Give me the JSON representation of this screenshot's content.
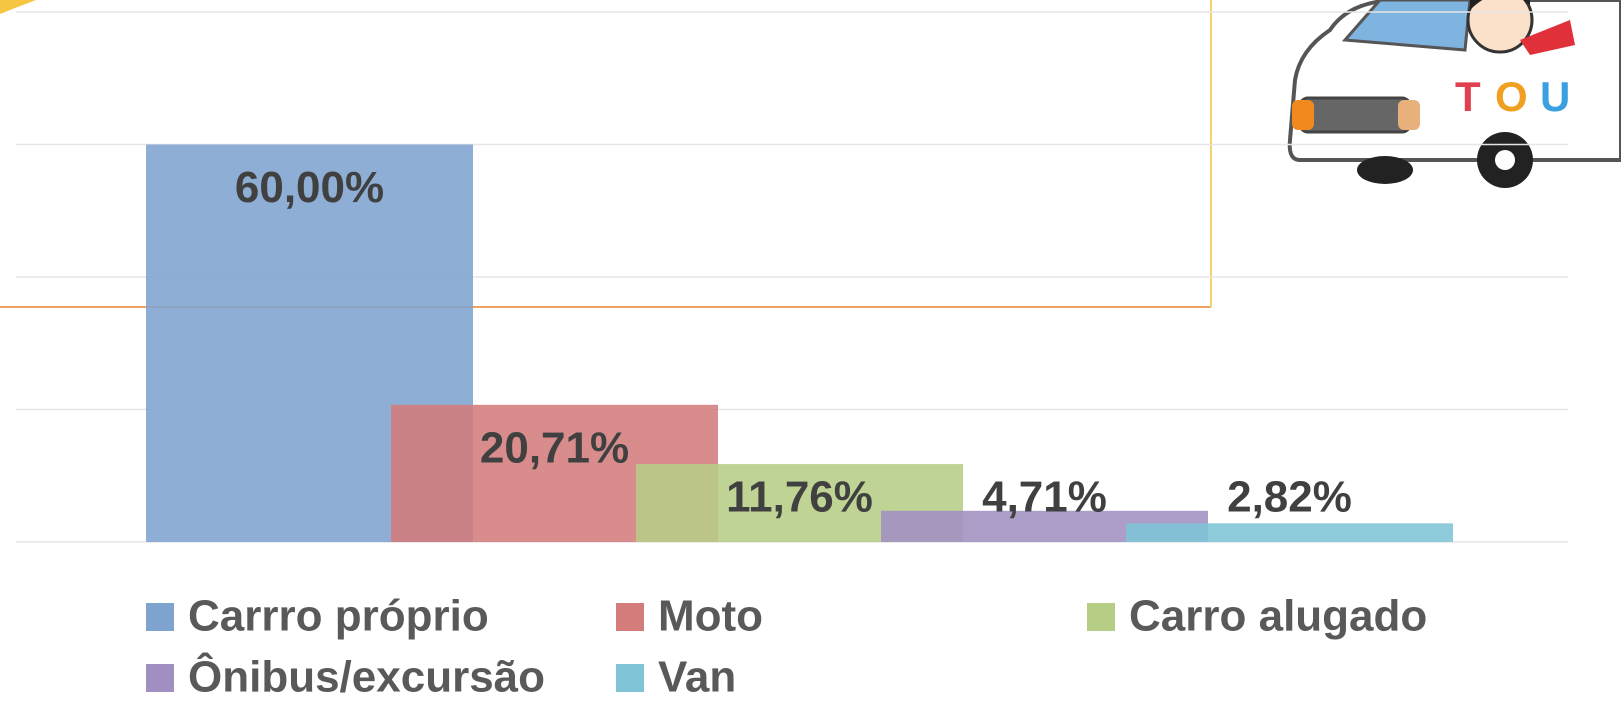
{
  "chart_data": {
    "type": "bar",
    "categories": [
      "Carrro próprio",
      "Moto",
      "Carro alugado",
      "Ônibus/excursão",
      "Van"
    ],
    "values": [
      60,
      20.71,
      11.76,
      4.71,
      2.82
    ],
    "value_labels": [
      "60,00%",
      "20,71%",
      "11,76%",
      "4,71%",
      "2,82%"
    ],
    "colors": [
      "#7ea3cf",
      "#d47c7c",
      "#b6cd86",
      "#a28fc1",
      "#7ec4d6"
    ],
    "ylim": [
      0,
      80
    ],
    "yticks": [
      0,
      20,
      40,
      60,
      80
    ],
    "grid": true,
    "legend": "bottom"
  }
}
